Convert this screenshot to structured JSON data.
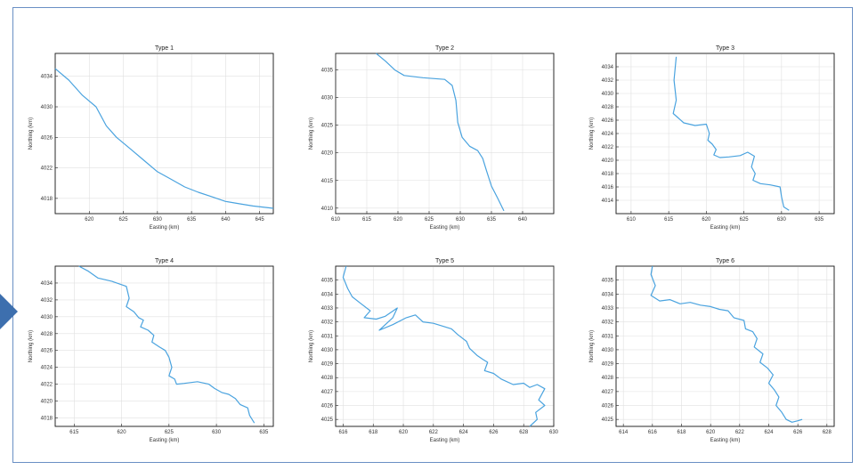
{
  "chart_data": [
    {
      "type": "line",
      "title": "Type 1",
      "xlabel": "Easting (km)",
      "ylabel": "Northing (km)",
      "xlim": [
        615,
        647
      ],
      "ylim": [
        4016,
        4037
      ],
      "xticks": [
        620,
        625,
        630,
        635,
        640,
        645
      ],
      "yticks": [
        4018,
        4022,
        4026,
        4030,
        4034
      ],
      "color": "#4aa3df",
      "grid": true,
      "series": [
        {
          "x": [
            615,
            617,
            619,
            621,
            622.5,
            624,
            626,
            628,
            630,
            632,
            634,
            636,
            638,
            640,
            642,
            644,
            646,
            647
          ],
          "y": [
            4035,
            4033.5,
            4031.5,
            4030,
            4027.5,
            4026,
            4024.5,
            4023,
            4021.5,
            4020.5,
            4019.5,
            4018.8,
            4018.2,
            4017.6,
            4017.3,
            4017.0,
            4016.8,
            4016.7
          ]
        }
      ]
    },
    {
      "type": "line",
      "title": "Type 2",
      "xlabel": "Easting (km)",
      "ylabel": "Northing (km)",
      "xlim": [
        610,
        645
      ],
      "ylim": [
        4009,
        4038
      ],
      "xticks": [
        610,
        615,
        620,
        625,
        630,
        635,
        640
      ],
      "yticks": [
        4010,
        4015,
        4020,
        4025,
        4030,
        4035
      ],
      "color": "#4aa3df",
      "grid": true,
      "series": [
        {
          "x": [
            616.5,
            618,
            619.5,
            621,
            624,
            627.5,
            628.7,
            629.3,
            629.6,
            630.3,
            631.5,
            632.8,
            633.6,
            634.2,
            635,
            636,
            637
          ],
          "y": [
            4038,
            4036.6,
            4035,
            4034,
            4033.6,
            4033.3,
            4032.2,
            4029.5,
            4025.5,
            4022.8,
            4021.2,
            4020.4,
            4019,
            4016.8,
            4014,
            4011.8,
            4009.5
          ]
        }
      ]
    },
    {
      "type": "line",
      "title": "Type 3",
      "xlabel": "Easting (km)",
      "ylabel": "Northing (km)",
      "xlim": [
        608,
        637
      ],
      "ylim": [
        4012,
        4036
      ],
      "xticks": [
        610,
        615,
        620,
        625,
        630,
        635
      ],
      "yticks": [
        4014,
        4016,
        4018,
        4020,
        4022,
        4024,
        4026,
        4028,
        4030,
        4032,
        4034
      ],
      "color": "#4aa3df",
      "grid": true,
      "series": [
        {
          "x": [
            616,
            615.7,
            616,
            615.6,
            616.2,
            617,
            618.5,
            620,
            620.4,
            620.2,
            620.8,
            621.3,
            621.0,
            621.8,
            623,
            624.5,
            625.5,
            626.4,
            626.0,
            626.5,
            626.2,
            627.2,
            628.5,
            629.8,
            630.0,
            630.3,
            631
          ],
          "y": [
            4035.5,
            4032,
            4029,
            4027,
            4026.4,
            4025.6,
            4025.2,
            4025.4,
            4024,
            4023,
            4022.4,
            4021.6,
            4020.8,
            4020.4,
            4020.5,
            4020.7,
            4021.2,
            4020.6,
            4019,
            4018,
            4017,
            4016.5,
            4016.3,
            4016.0,
            4014.5,
            4013,
            4012.5
          ]
        }
      ]
    },
    {
      "type": "line",
      "title": "Type 4",
      "xlabel": "Easting (km)",
      "ylabel": "Northing (km)",
      "xlim": [
        613,
        636
      ],
      "ylim": [
        4017,
        4036
      ],
      "xticks": [
        615,
        620,
        625,
        630,
        635
      ],
      "yticks": [
        4018,
        4020,
        4022,
        4024,
        4026,
        4028,
        4030,
        4032,
        4034
      ],
      "color": "#4aa3df",
      "grid": true,
      "series": [
        {
          "x": [
            615.5,
            616.5,
            617.5,
            619,
            620.5,
            620.8,
            620.5,
            621.3,
            621.8,
            622.3,
            622.0,
            622.8,
            623.4,
            623.2,
            624.0,
            624.6,
            625.0,
            625.3,
            625.0,
            625.6,
            625.8,
            626.6,
            628.0,
            629.2,
            629.8,
            630.6,
            631.3,
            632.0,
            632.5,
            633.3,
            633.5,
            634
          ],
          "y": [
            4036,
            4035.4,
            4034.6,
            4034.2,
            4033.6,
            4032.2,
            4031.2,
            4030.6,
            4029.9,
            4029.6,
            4028.8,
            4028.4,
            4027.8,
            4027.0,
            4026.4,
            4026.0,
            4025.2,
            4024.0,
            4023.0,
            4022.6,
            4022.0,
            4022.1,
            4022.3,
            4022.0,
            4021.5,
            4021.0,
            4020.8,
            4020.3,
            4019.6,
            4019.2,
            4018.3,
            4017.4
          ]
        }
      ]
    },
    {
      "type": "line",
      "title": "Type 5",
      "xlabel": "Easting (km)",
      "ylabel": "Northing (km)",
      "xlim": [
        615.5,
        630
      ],
      "ylim": [
        4024.5,
        4036
      ],
      "xticks": [
        616,
        618,
        620,
        622,
        624,
        626,
        628,
        630
      ],
      "yticks": [
        4025,
        4026,
        4027,
        4028,
        4029,
        4030,
        4031,
        4032,
        4033,
        4034,
        4035
      ],
      "color": "#4aa3df",
      "grid": true,
      "series": [
        {
          "x": [
            616.2,
            616.0,
            616.3,
            616.6,
            617.2,
            617.8,
            617.4,
            618.2,
            618.8,
            619.6,
            619.3,
            618.8,
            618.4,
            619.3,
            620.2,
            620.8,
            621.3,
            622.0,
            622.6,
            623.2,
            623.6,
            624.2,
            624.4,
            624.9,
            625.3,
            625.6,
            625.4,
            626.0,
            626.5,
            627.3,
            628.0,
            628.4,
            628.9,
            629.4,
            629.0,
            629.4,
            628.8,
            628.9,
            628.4
          ],
          "y": [
            4036,
            4035.2,
            4034.4,
            4033.8,
            4033.3,
            4032.8,
            4032.3,
            4032.2,
            4032.4,
            4033.0,
            4032.3,
            4031.8,
            4031.4,
            4031.8,
            4032.3,
            4032.5,
            4032.0,
            4031.9,
            4031.7,
            4031.5,
            4031.1,
            4030.6,
            4030.1,
            4029.6,
            4029.3,
            4029.1,
            4028.5,
            4028.3,
            4027.9,
            4027.5,
            4027.6,
            4027.3,
            4027.5,
            4027.2,
            4026.4,
            4026.0,
            4025.5,
            4025.0,
            4024.5
          ]
        }
      ]
    },
    {
      "type": "line",
      "title": "Type 6",
      "xlabel": "Easting (km)",
      "ylabel": "Northing (km)",
      "xlim": [
        613.5,
        628.5
      ],
      "ylim": [
        4024.5,
        4036
      ],
      "xticks": [
        614,
        616,
        618,
        620,
        622,
        624,
        626,
        628
      ],
      "yticks": [
        4025,
        4026,
        4027,
        4028,
        4029,
        4030,
        4031,
        4032,
        4033,
        4034,
        4035
      ],
      "color": "#4aa3df",
      "grid": true,
      "series": [
        {
          "x": [
            616.0,
            615.9,
            616.2,
            615.9,
            616.5,
            617.2,
            617.9,
            618.6,
            619.3,
            620.0,
            620.6,
            621.2,
            621.6,
            622.3,
            622.4,
            622.9,
            623.2,
            623.0,
            623.6,
            623.4,
            623.9,
            624.3,
            624.0,
            624.4,
            624.7,
            624.5,
            624.9,
            625.2,
            625.6,
            626.0,
            626.3
          ],
          "y": [
            4036,
            4035.4,
            4034.6,
            4033.9,
            4033.5,
            4033.6,
            4033.3,
            4033.4,
            4033.2,
            4033.1,
            4032.9,
            4032.8,
            4032.3,
            4032.1,
            4031.5,
            4031.3,
            4030.8,
            4030.2,
            4029.7,
            4029.1,
            4028.7,
            4028.2,
            4027.6,
            4027.1,
            4026.6,
            4026.0,
            4025.5,
            4025.0,
            4024.8,
            4024.9,
            4025.0
          ]
        }
      ]
    }
  ]
}
